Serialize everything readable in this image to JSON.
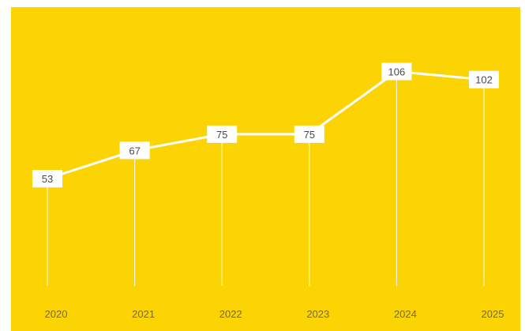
{
  "chart_data": {
    "type": "line",
    "title": "",
    "xlabel": "",
    "ylabel": "",
    "categories": [
      "2020",
      "2021",
      "2022",
      "2023",
      "2024",
      "2025"
    ],
    "series": [
      {
        "values": [
          53,
          67,
          75,
          75,
          106,
          102
        ]
      }
    ],
    "ylim": [
      0,
      130
    ],
    "grid": false,
    "legend": "none",
    "data_labels": true
  },
  "colors": {
    "background": "#FCD303",
    "line": "#FFFFFF",
    "label_box": "#FFFFFF",
    "label_text": "#4A4A4A",
    "tick_text": "#6F6A3C"
  }
}
